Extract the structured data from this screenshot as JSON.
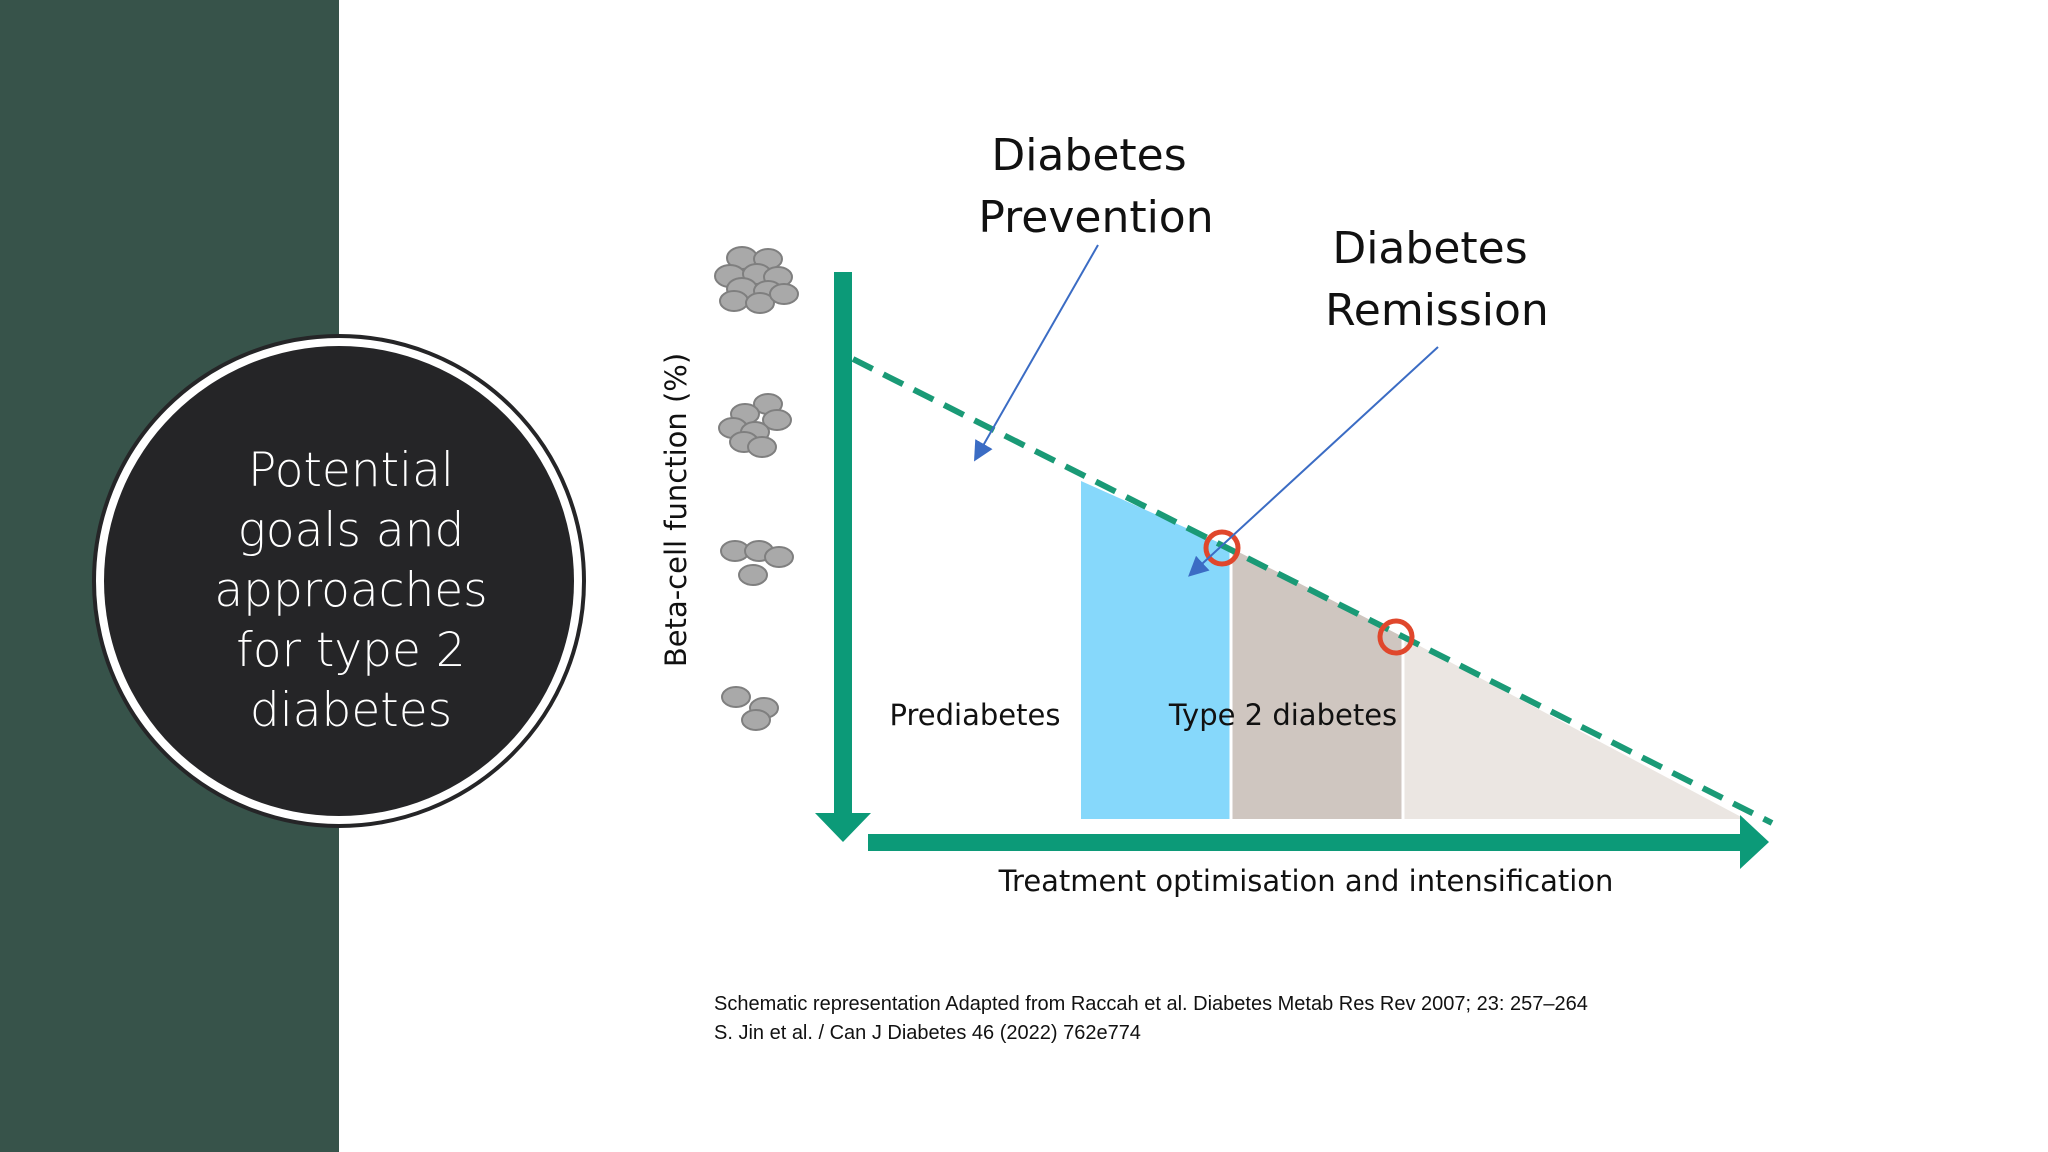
{
  "slide": {
    "title": "Potential goals and approaches for type 2 diabetes",
    "title_lines": [
      "Potential",
      "goals and",
      "approaches",
      "for type 2",
      "diabetes"
    ]
  },
  "diagram": {
    "annotations": {
      "prevention": [
        "Diabetes",
        "Prevention"
      ],
      "remission": [
        "Diabetes",
        "Remission"
      ]
    },
    "y_axis_label": "Beta-cell function (%)",
    "x_axis_label": "Treatment optimisation and intensification",
    "regions": {
      "prediabetes": "Prediabetes",
      "type2": "Type 2 diabetes"
    },
    "colors": {
      "axis": "#0c9a78",
      "dashed_line": "#1a9a76",
      "prevention_zone": "#86d8fb",
      "type2_zone": "#cfc6c0",
      "late_zone": "#ebe6e2",
      "marker": "#e0472c",
      "pointer": "#3b6cc4",
      "beta_cell": "#a9a9a9"
    },
    "icons": [
      "beta-cell-cluster-large",
      "beta-cell-cluster-medium",
      "beta-cell-cluster-small",
      "beta-cell-cluster-minimal"
    ]
  },
  "citation": {
    "line1": "Schematic representation Adapted from Raccah et al. Diabetes Metab Res Rev 2007; 23: 257–264",
    "line2": "S. Jin et al. / Can J Diabetes 46 (2022) 762e774"
  }
}
